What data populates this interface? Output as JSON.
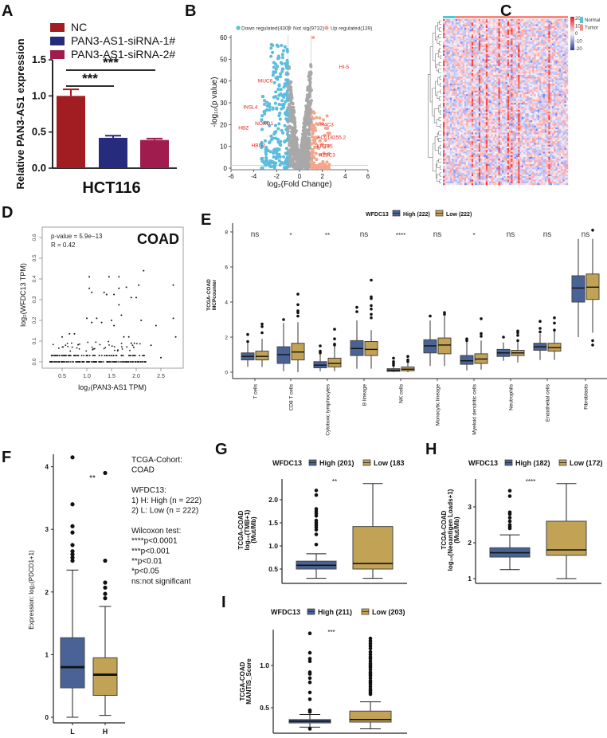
{
  "panel_labels": [
    "A",
    "B",
    "C",
    "D",
    "E",
    "F",
    "G",
    "H",
    "I"
  ],
  "chart_data": [
    {
      "type": "bar",
      "title": "HCT116",
      "ylabel": "Relative PAN3-AS1 expression",
      "categories": [
        "NC",
        "PAN3-AS1-siRNA-1#",
        "PAN3-AS1-siRNA-2#"
      ],
      "values": [
        1.0,
        0.42,
        0.39
      ],
      "errors": [
        0.09,
        0.03,
        0.02
      ],
      "colors": [
        "#a11d21",
        "#272b7d",
        "#a01c4f"
      ],
      "ylim": [
        0,
        1.5
      ],
      "yticks": [
        "0.0",
        "0.5",
        "1.0",
        "1.5"
      ],
      "significance": [
        {
          "from": 0,
          "to": 1,
          "label": "***"
        },
        {
          "from": 0,
          "to": 2,
          "label": "***"
        }
      ]
    },
    {
      "type": "scatter",
      "xlabel": "log₂(Fold Change)",
      "ylabel": "-log₁₀(p value)",
      "xlim": [
        -6,
        6
      ],
      "ylim": [
        0,
        60
      ],
      "xticks": [
        "-6",
        "-4",
        "-2",
        "0",
        "2",
        "4",
        "6"
      ],
      "yticks": [
        "0",
        "10",
        "20",
        "30",
        "40",
        "50",
        "60"
      ],
      "fold_threshold": 1,
      "legend": [
        {
          "name": "Down regulated(430)",
          "color": "#5bbcde"
        },
        {
          "name": "Not sig(9732)",
          "color": "#a8a8a8"
        },
        {
          "name": "Up regulated(139)",
          "color": "#f4a58b"
        }
      ],
      "labeled_genes": [
        {
          "label": "HI-5",
          "x": 3.9,
          "y": 46.5
        },
        {
          "label": "MUC6",
          "x": -3.0,
          "y": 40
        },
        {
          "label": "INSL4",
          "x": -4.3,
          "y": 28
        },
        {
          "label": "NOXO1",
          "x": -3.1,
          "y": 20.5
        },
        {
          "label": "HBZ",
          "x": -4.9,
          "y": 18.5
        },
        {
          "label": "HBG2",
          "x": -3.6,
          "y": 10.5
        },
        {
          "label": "H4C3",
          "x": 2.4,
          "y": 20
        },
        {
          "label": "AC018255.2",
          "x": 2.8,
          "y": 14
        },
        {
          "label": "KRT35",
          "x": 2.2,
          "y": 10
        },
        {
          "label": "H2BC3",
          "x": 2.4,
          "y": 6
        }
      ]
    },
    {
      "type": "heatmap",
      "color_scale": {
        "ticks": [
          "20",
          "10",
          "0",
          "-10",
          "-20"
        ],
        "colors": [
          "#e31a1c",
          "#f4f3f8",
          "#2b3a9c"
        ]
      },
      "annotation": [
        {
          "name": "Normal",
          "color": "#4fc8cf"
        },
        {
          "name": "Tumor",
          "color": "#f48a80"
        }
      ]
    },
    {
      "type": "scatter",
      "title": "COAD",
      "stats": [
        "p-value = 5.9e−13",
        "R = 0.42"
      ],
      "xlabel": "log₂(PAN3-AS1 TPM)",
      "ylabel": "log₂(WFDC13 TPM)",
      "xticks": [
        "0.5",
        "1.0",
        "1.5",
        "2.0",
        "2.5"
      ],
      "yticks": [
        "0.0",
        "0.1",
        "0.2",
        "0.3",
        "0.4",
        "0.5",
        "0.6"
      ],
      "points": [
        [
          1.05,
          0.41
        ],
        [
          1.45,
          0.41
        ],
        [
          1.65,
          0.41
        ],
        [
          2.15,
          0.44
        ],
        [
          2.75,
          0.37
        ],
        [
          2.75,
          0.21
        ],
        [
          2.8,
          0.12
        ],
        [
          1.05,
          0.355
        ],
        [
          1.1,
          0.335
        ],
        [
          1.35,
          0.335
        ],
        [
          1.4,
          0.325
        ],
        [
          1.55,
          0.325
        ],
        [
          1.8,
          0.36
        ],
        [
          1.65,
          0.355
        ],
        [
          1.9,
          0.31
        ],
        [
          2.0,
          0.31
        ],
        [
          2.05,
          0.37
        ],
        [
          1.65,
          0.275
        ],
        [
          1.7,
          0.225
        ],
        [
          2.1,
          0.2
        ],
        [
          1.0,
          0.21
        ],
        [
          1.2,
          0.21
        ],
        [
          1.5,
          0.2
        ],
        [
          2.4,
          0.175
        ],
        [
          1.1,
          0.19
        ],
        [
          1.3,
          0.19
        ],
        [
          1.55,
          0.175
        ],
        [
          0.5,
          0.12
        ],
        [
          0.65,
          0.135
        ],
        [
          0.75,
          0.135
        ],
        [
          2.3,
          0.08
        ],
        [
          1.75,
          0.12
        ],
        [
          1.85,
          0.12
        ],
        [
          1.9,
          0.09
        ],
        [
          1.95,
          0.07
        ],
        [
          2.5,
          0.02
        ]
      ]
    },
    {
      "type": "box",
      "legend_title": "WFDC13",
      "series": [
        {
          "name": "High (222)",
          "color": "#4a6396"
        },
        {
          "name": "Low (222)",
          "color": "#c2a255"
        }
      ],
      "ylabel": [
        "TCGA-COAD",
        "MCPcounter"
      ],
      "ylim": [
        0,
        8
      ],
      "yticks": [
        "0",
        "2",
        "4",
        "6",
        "8"
      ],
      "categories": [
        "T cells",
        "CD8 T cells",
        "Cytotoxic lymphocytes",
        "B lineage",
        "NK cells",
        "Monocytic lineage",
        "Myeloid dendritic cells",
        "Neutrophils",
        "Endothelial cells",
        "Fibroblasts"
      ],
      "significance": [
        "ns",
        "*",
        "**",
        "ns",
        "****",
        "ns",
        "*",
        "ns",
        "ns",
        "ns"
      ],
      "high": [
        {
          "stats": [
            0.3,
            0.7,
            0.9,
            1.1,
            1.7
          ],
          "outliers": [
            1.75,
            2.15
          ]
        },
        {
          "stats": [
            0.05,
            0.5,
            1.0,
            1.45,
            2.8
          ],
          "outliers": [
            3.0
          ]
        },
        {
          "stats": [
            0.05,
            0.25,
            0.4,
            0.6,
            1.05
          ],
          "outliers": [
            1.1,
            1.2,
            1.5
          ]
        },
        {
          "stats": [
            0.2,
            0.95,
            1.35,
            1.8,
            2.95
          ],
          "outliers": [
            3.45,
            3.7
          ]
        },
        {
          "stats": [
            0.0,
            0.05,
            0.1,
            0.2,
            0.35
          ],
          "outliers": [
            0.4,
            0.5,
            0.6,
            0.8
          ]
        },
        {
          "stats": [
            0.35,
            1.1,
            1.5,
            1.85,
            2.95
          ],
          "outliers": [
            3.2
          ]
        },
        {
          "stats": [
            0.1,
            0.45,
            0.65,
            0.95,
            1.75
          ],
          "outliers": [
            1.8,
            1.9
          ]
        },
        {
          "stats": [
            0.65,
            0.9,
            1.1,
            1.3,
            1.7
          ],
          "outliers": [
            2.0
          ]
        },
        {
          "stats": [
            0.7,
            1.25,
            1.45,
            1.65,
            2.2
          ],
          "outliers": [
            2.3,
            2.5,
            2.9
          ]
        },
        {
          "stats": [
            2.0,
            4.0,
            4.8,
            5.5,
            7.6
          ],
          "outliers": []
        }
      ],
      "low": [
        {
          "stats": [
            0.3,
            0.7,
            0.9,
            1.2,
            1.9
          ],
          "outliers": [
            2.25,
            2.6,
            2.75
          ]
        },
        {
          "stats": [
            0.0,
            0.7,
            1.15,
            1.65,
            2.85
          ],
          "outliers": [
            3.2,
            3.4,
            3.5,
            3.85,
            4.45
          ]
        },
        {
          "stats": [
            0.05,
            0.3,
            0.5,
            0.8,
            1.5
          ],
          "outliers": [
            1.55,
            1.6,
            1.9,
            2.45
          ]
        },
        {
          "stats": [
            0.2,
            0.95,
            1.3,
            1.75,
            2.4
          ],
          "outliers": [
            3.1,
            3.3,
            3.6,
            3.8,
            4.2,
            4.3,
            5.25
          ]
        },
        {
          "stats": [
            0.0,
            0.08,
            0.17,
            0.3,
            0.5
          ],
          "outliers": [
            0.6,
            0.7,
            0.9
          ]
        },
        {
          "stats": [
            0.35,
            1.05,
            1.55,
            1.95,
            3.2
          ],
          "outliers": [
            3.3,
            3.4
          ]
        },
        {
          "stats": [
            0.15,
            0.5,
            0.75,
            1.05,
            1.8
          ],
          "outliers": [
            2.05,
            2.2,
            3.05
          ]
        },
        {
          "stats": [
            0.55,
            0.95,
            1.1,
            1.25,
            1.7
          ],
          "outliers": [
            1.8,
            2.1,
            2.25,
            2.35
          ]
        },
        {
          "stats": [
            0.7,
            1.2,
            1.4,
            1.65,
            2.35
          ],
          "outliers": [
            2.4,
            2.8,
            3.1
          ]
        },
        {
          "stats": [
            2.25,
            4.15,
            4.85,
            5.6,
            7.6
          ],
          "outliers": [
            1.55,
            1.8,
            8.1
          ]
        }
      ]
    },
    {
      "type": "box",
      "ylabel": "Expression: log₂(PDCD1+1)",
      "categories": [
        "L",
        "H"
      ],
      "colors": [
        "#4a6396",
        "#c2a255"
      ],
      "ylim": [
        0,
        4
      ],
      "yticks": [
        "0",
        "1",
        "2",
        "3",
        "4"
      ],
      "significance": "**",
      "boxes": [
        {
          "stats": [
            0.0,
            0.47,
            0.8,
            1.27,
            2.35
          ],
          "outliers": [
            2.5,
            2.55,
            2.6,
            2.65,
            2.75,
            2.95,
            3.05,
            3.4,
            4.15
          ]
        },
        {
          "stats": [
            0.03,
            0.35,
            0.68,
            0.95,
            1.77
          ],
          "outliers": [
            1.9,
            1.97,
            2.07,
            2.15,
            2.5,
            3.9
          ]
        }
      ],
      "notes": [
        "TCGA-Cohort:",
        "COAD",
        "",
        "WFDC13:",
        "1) H: High (n = 222)",
        "2) L: Low (n = 222)",
        "",
        "Wilcoxon test:",
        "****p<0.0001",
        "***p<0.001",
        "**p<0.01",
        "*p<0.05",
        "ns:not significant"
      ]
    },
    {
      "type": "box",
      "legend_title": "WFDC13",
      "series": [
        {
          "name": "High (201)",
          "color": "#4a6396"
        },
        {
          "name": "Low (183",
          "color": "#c2a255"
        }
      ],
      "ylabel": [
        "TCGA-COAD",
        "log₁₀(TMB+1)",
        "(Mut/Mb)"
      ],
      "yticks": [
        "0.5",
        "1.0",
        "1.5",
        "2.0"
      ],
      "significance": "**",
      "boxes": [
        {
          "stats": [
            0.3,
            0.5,
            0.58,
            0.67,
            0.83
          ],
          "outliers": [
            1.03,
            1.25,
            1.35,
            1.4,
            1.45,
            1.5,
            1.55,
            1.65,
            1.7,
            1.75,
            1.8,
            2.1,
            2.2
          ]
        },
        {
          "stats": [
            0.3,
            0.5,
            0.62,
            1.42,
            2.35
          ],
          "outliers": []
        }
      ]
    },
    {
      "type": "box",
      "legend_title": "WFDC13",
      "series": [
        {
          "name": "High (182)",
          "color": "#4a6396"
        },
        {
          "name": "Low (172)",
          "color": "#c2a255"
        }
      ],
      "ylabel": [
        "TCGA-COAD",
        "log₁₀(Neoantigen Loads+1)",
        "(Mut/Mb)"
      ],
      "yticks": [
        "1",
        "2",
        "3"
      ],
      "significance": "****",
      "boxes": [
        {
          "stats": [
            1.25,
            1.6,
            1.72,
            1.86,
            2.22
          ],
          "outliers": [
            2.4,
            2.45,
            2.5,
            2.6,
            2.7,
            2.8,
            2.85,
            3.3,
            3.45
          ]
        },
        {
          "stats": [
            1.0,
            1.65,
            1.8,
            2.6,
            3.65
          ],
          "outliers": []
        }
      ]
    },
    {
      "type": "box",
      "legend_title": "WFDC13",
      "series": [
        {
          "name": "High (211)",
          "color": "#4a6396"
        },
        {
          "name": "Low (203)",
          "color": "#c2a255"
        }
      ],
      "ylabel": [
        "TCGA-COAD",
        "MANTIS_Score"
      ],
      "yticks": [
        "0.5",
        "1.0"
      ],
      "significance": "***",
      "boxes": [
        {
          "stats": [
            0.27,
            0.32,
            0.34,
            0.36,
            0.42
          ],
          "outliers": [
            0.25,
            0.45,
            0.47,
            0.6,
            0.68,
            0.8,
            0.85,
            0.9,
            0.92,
            1.05,
            1.08,
            1.15,
            1.38
          ]
        },
        {
          "stats": [
            0.25,
            0.33,
            0.36,
            0.46,
            0.57
          ],
          "outliers": [
            0.66,
            0.68,
            0.7,
            0.72,
            0.75,
            0.78,
            0.8,
            0.82,
            0.85,
            0.88,
            0.9,
            0.92,
            0.95,
            0.98,
            1.0,
            1.02,
            1.05,
            1.08,
            1.1,
            1.13,
            1.16,
            1.2,
            1.23,
            1.26,
            1.29,
            1.32
          ]
        }
      ]
    }
  ]
}
